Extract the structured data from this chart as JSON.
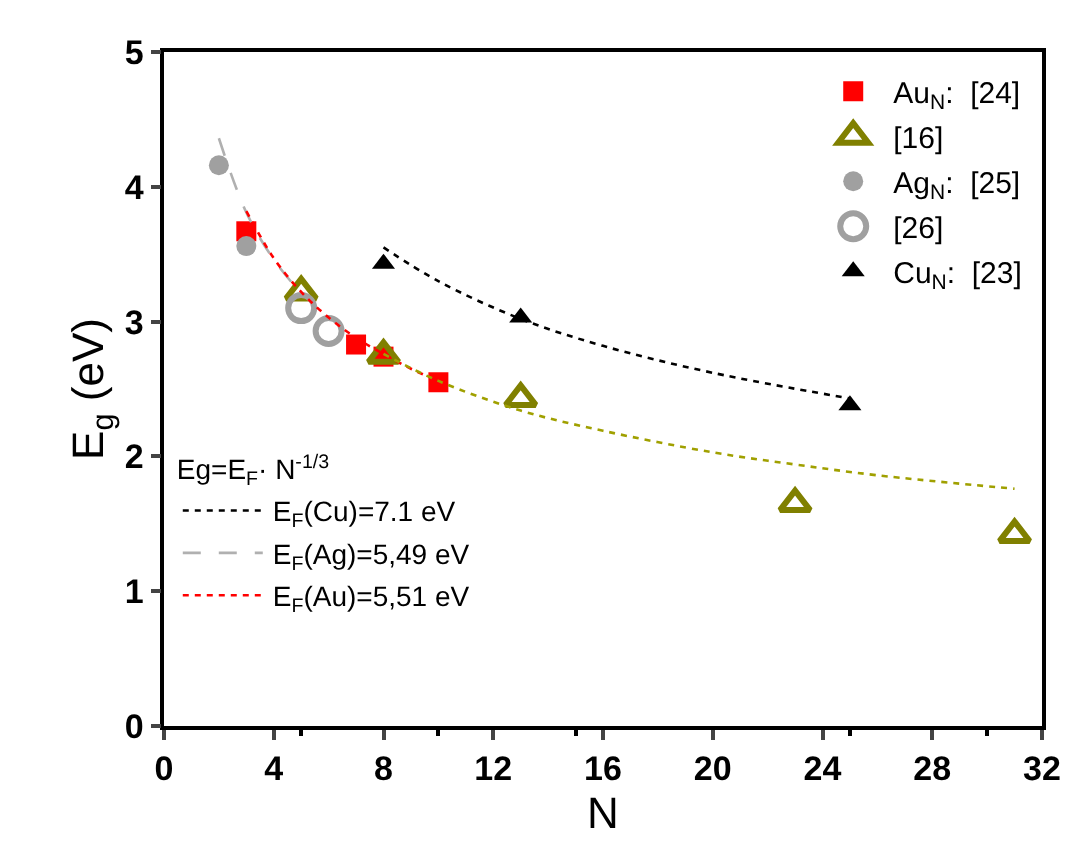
{
  "chart_data": {
    "type": "scatter",
    "xlabel": "N",
    "ylabel": "E$_{g}$ (eV)",
    "legend_title": "Eg=E$_{F}$· N$^{-1/3}$",
    "xlim": [
      0,
      32
    ],
    "xticks": [
      0,
      4,
      8,
      12,
      16,
      20,
      24,
      28,
      32
    ],
    "ylim": [
      0,
      5
    ],
    "yticks": [
      0,
      1,
      2,
      3,
      4,
      5
    ],
    "legend": "top right",
    "series": [
      {
        "name": "Au$_{N}$:  [24]",
        "color": "#ff0000",
        "marker": "square",
        "x": [
          3,
          7,
          8,
          10
        ],
        "values": [
          3.67,
          2.83,
          2.74,
          2.55
        ]
      },
      {
        "name": "[16]",
        "color": "#808000",
        "marker": "triangle-open",
        "x": [
          5,
          8,
          13,
          23,
          31
        ],
        "values": [
          3.22,
          2.75,
          2.43,
          1.65,
          1.42
        ]
      },
      {
        "name": "Ag$_{N}$:  [25]",
        "color": "#a0a0a0",
        "marker": "circle",
        "x": [
          2,
          3
        ],
        "values": [
          4.16,
          3.56
        ]
      },
      {
        "name": "[26]",
        "color": "#a0a0a0",
        "marker": "circle-open",
        "x": [
          5,
          6
        ],
        "values": [
          3.1,
          2.93
        ]
      },
      {
        "name": "Cu$_{N}$:  [23]",
        "color": "#000000",
        "marker": "triangle",
        "x": [
          8,
          13,
          25
        ],
        "values": [
          3.43,
          3.03,
          2.38
        ]
      },
      {
        "type": "line",
        "name": "E$_{F}$(Cu)=7.1 eV",
        "color": "#000000",
        "line_style": "dotted",
        "x": [
          8,
          10,
          13,
          16,
          20,
          25
        ],
        "values": [
          3.55,
          3.3,
          3.02,
          2.82,
          2.62,
          2.43
        ]
      },
      {
        "type": "line",
        "name": "E$_{F}$(Ag)=5,49 eV",
        "color": "#b0b0b0",
        "line_style": "dashed",
        "x": [
          2,
          3,
          4,
          5
        ],
        "values": [
          4.36,
          3.81,
          3.46,
          3.21
        ]
      },
      {
        "type": "line",
        "name": "E$_{F}$(Au)=5,51 eV",
        "color": "#ff0000",
        "line_style": "dotted",
        "x": [
          3,
          4,
          5,
          6,
          7,
          8,
          9,
          10
        ],
        "values": [
          3.82,
          3.47,
          3.22,
          3.03,
          2.88,
          2.76,
          2.65,
          2.56
        ]
      },
      {
        "type": "line",
        "color": "#a0a000",
        "line_style": "dotted",
        "x": [
          8,
          10,
          13,
          16,
          20,
          23,
          26,
          31
        ],
        "values": [
          2.76,
          2.56,
          2.34,
          2.19,
          2.03,
          1.94,
          1.86,
          1.76
        ]
      }
    ]
  }
}
